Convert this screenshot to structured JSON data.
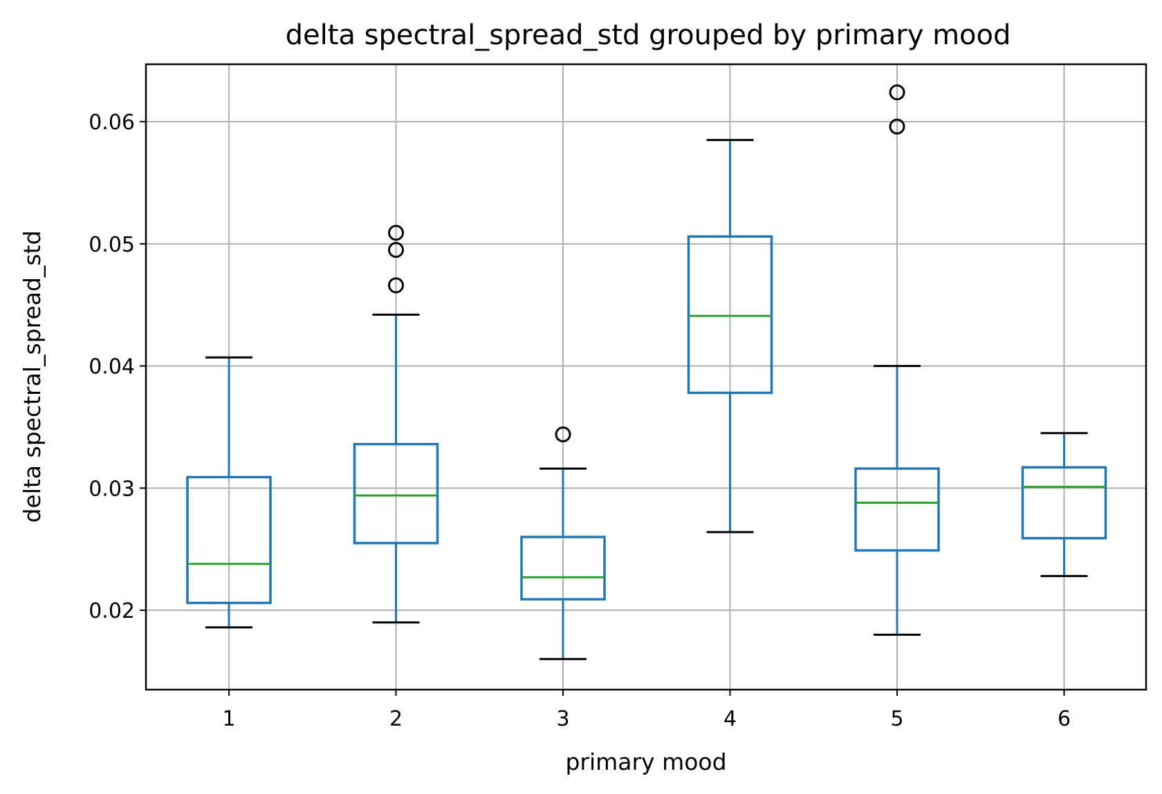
{
  "chart_data": {
    "type": "boxplot",
    "title": "delta spectral_spread_std grouped by primary mood",
    "xlabel": "primary mood",
    "ylabel": "delta spectral_spread_std",
    "categories": [
      "1",
      "2",
      "3",
      "4",
      "5",
      "6"
    ],
    "ylim": [
      0.0135,
      0.0647
    ],
    "yticks": [
      0.02,
      0.03,
      0.04,
      0.05,
      0.06
    ],
    "ytick_labels": [
      "0.02",
      "0.03",
      "0.04",
      "0.05",
      "0.06"
    ],
    "grid": true,
    "boxes": [
      {
        "category": "1",
        "whislo": 0.0186,
        "q1": 0.0206,
        "med": 0.0238,
        "q3": 0.0309,
        "whishi": 0.0407,
        "fliers": []
      },
      {
        "category": "2",
        "whislo": 0.019,
        "q1": 0.0255,
        "med": 0.0294,
        "q3": 0.0336,
        "whishi": 0.0442,
        "fliers": [
          0.0466,
          0.0495,
          0.0509
        ]
      },
      {
        "category": "3",
        "whislo": 0.016,
        "q1": 0.0209,
        "med": 0.0227,
        "q3": 0.026,
        "whishi": 0.0316,
        "fliers": [
          0.0344
        ]
      },
      {
        "category": "4",
        "whislo": 0.0264,
        "q1": 0.0378,
        "med": 0.0441,
        "q3": 0.0506,
        "whishi": 0.0585,
        "fliers": []
      },
      {
        "category": "5",
        "whislo": 0.018,
        "q1": 0.0249,
        "med": 0.0288,
        "q3": 0.0316,
        "whishi": 0.04,
        "fliers": [
          0.0596,
          0.0624
        ]
      },
      {
        "category": "6",
        "whislo": 0.0228,
        "q1": 0.0259,
        "med": 0.0301,
        "q3": 0.0317,
        "whishi": 0.0345,
        "fliers": []
      }
    ],
    "colors": {
      "box": "#1f77b4",
      "median": "#2ca02c",
      "cap": "#000000",
      "flier": "#000000",
      "grid": "#b0b0b0"
    }
  }
}
